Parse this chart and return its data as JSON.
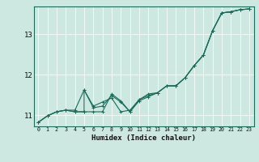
{
  "title": "",
  "xlabel": "Humidex (Indice chaleur)",
  "bg_color": "#cce8e0",
  "line_color": "#1a6b5a",
  "grid_color": "#ffffff",
  "xlim": [
    -0.5,
    23.5
  ],
  "ylim": [
    10.72,
    13.68
  ],
  "yticks": [
    11,
    12,
    13
  ],
  "xticks": [
    0,
    1,
    2,
    3,
    4,
    5,
    6,
    7,
    8,
    9,
    10,
    11,
    12,
    13,
    14,
    15,
    16,
    17,
    18,
    19,
    20,
    21,
    22,
    23
  ],
  "series1_x": [
    0,
    1,
    2,
    3,
    4,
    5,
    6,
    7,
    8,
    9,
    10,
    11,
    12,
    13,
    14,
    15,
    16,
    17,
    18,
    19,
    20,
    21,
    22,
    23
  ],
  "series1_y": [
    10.82,
    10.98,
    11.08,
    11.12,
    11.12,
    11.62,
    11.22,
    11.32,
    11.42,
    11.08,
    11.12,
    11.38,
    11.48,
    11.55,
    11.72,
    11.72,
    11.92,
    12.22,
    12.48,
    13.08,
    13.52,
    13.55,
    13.6,
    13.62
  ],
  "series2_x": [
    0,
    1,
    2,
    3,
    4,
    5,
    5,
    6,
    7,
    8,
    9,
    10,
    11,
    12,
    13,
    14,
    15,
    16,
    17,
    18,
    19,
    20,
    21,
    22,
    23
  ],
  "series2_y": [
    10.82,
    10.98,
    11.08,
    11.12,
    11.08,
    11.08,
    11.62,
    11.18,
    11.22,
    11.48,
    11.32,
    11.08,
    11.35,
    11.45,
    11.55,
    11.72,
    11.72,
    11.92,
    12.22,
    12.48,
    13.08,
    13.52,
    13.55,
    13.6,
    13.62
  ],
  "series3_x": [
    0,
    1,
    2,
    3,
    4,
    5,
    6,
    7,
    8,
    9,
    10,
    11,
    12,
    13,
    14,
    15,
    16,
    17,
    18,
    19,
    20,
    21,
    22,
    23
  ],
  "series3_y": [
    10.82,
    10.98,
    11.08,
    11.12,
    11.08,
    11.08,
    11.08,
    11.08,
    11.52,
    11.35,
    11.08,
    11.38,
    11.52,
    11.55,
    11.72,
    11.72,
    11.92,
    12.22,
    12.48,
    13.08,
    13.52,
    13.55,
    13.6,
    13.62
  ]
}
